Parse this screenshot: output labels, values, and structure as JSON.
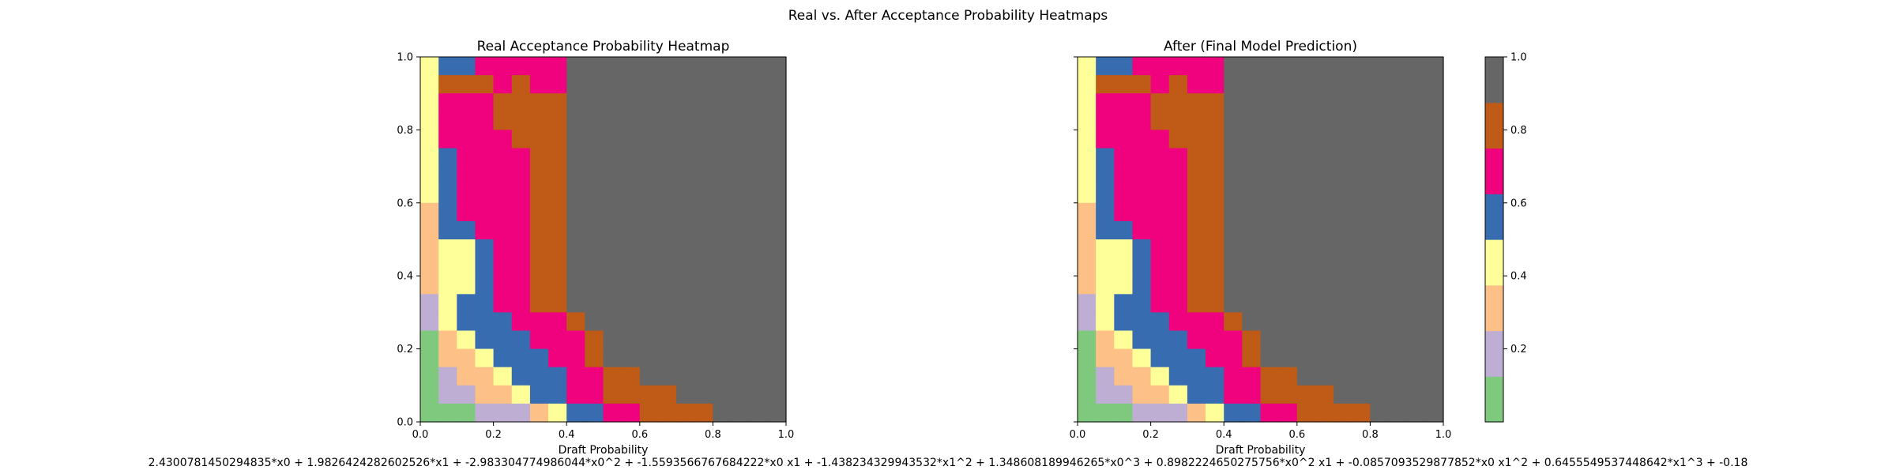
{
  "suptitle": "Real vs. After Acceptance Probability Heatmaps",
  "formula": "2.4300781450294835*x0 + 1.9826424282602526*x1 + -2.983304774986044*x0^2 + -1.5593566767684222*x0 x1 + -1.438234329943532*x1^2 + 1.348608189946265*x0^3 + 0.8982224650275756*x0^2 x1 + -0.0857093529877852*x0 x1^2 + 0.6455549537448642*x1^3 + -0.18",
  "colorbar": {
    "ticks": [
      "0.2",
      "0.4",
      "0.6",
      "0.8",
      "1.0"
    ],
    "tick_values": [
      0.2,
      0.4,
      0.6,
      0.8,
      1.0
    ],
    "range": [
      0.0,
      1.0
    ],
    "colors": [
      "#7fc97f",
      "#beaed4",
      "#fdc086",
      "#ffff99",
      "#386cb0",
      "#f0027f",
      "#bf5b17",
      "#666666"
    ]
  },
  "chart_data": [
    {
      "type": "heatmap",
      "title": "Real Acceptance Probability Heatmap",
      "xlabel": "Draft Probability",
      "ylabel": "",
      "xlim": [
        0,
        1
      ],
      "ylim": [
        0,
        1
      ],
      "xticks": [
        "0.0",
        "0.2",
        "0.4",
        "0.6",
        "0.8",
        "1.0"
      ],
      "yticks": [
        "0.0",
        "0.2",
        "0.4",
        "0.6",
        "0.8",
        "1.0"
      ],
      "grid_size": 20,
      "value_range": [
        0,
        1
      ],
      "rows_top_to_bottom": [
        "45566666888888888888",
        "47776766888888888888",
        "46667777888888888888",
        "46667777888888888888",
        "46666777888888888888",
        "45666677888888888888",
        "45666677888888888888",
        "45666677888888888888",
        "35666677888888888888",
        "35566677888888888888",
        "34456677888888888888",
        "34456677888888888888",
        "34456677888888888888",
        "24556677888888888888",
        "24555666788888888888",
        "13455566678888888888",
        "13345556678888888888",
        "12334555667788888888",
        "12233455667777888888",
        "11122234556677778888"
      ]
    },
    {
      "type": "heatmap",
      "title": "After (Final Model Prediction)",
      "xlabel": "Draft Probability",
      "ylabel": "",
      "xlim": [
        0,
        1
      ],
      "ylim": [
        0,
        1
      ],
      "xticks": [
        "0.0",
        "0.2",
        "0.4",
        "0.6",
        "0.8",
        "1.0"
      ],
      "yticks": [
        "0.0",
        "0.2",
        "0.4",
        "0.6",
        "0.8",
        "1.0"
      ],
      "grid_size": 20,
      "value_range": [
        0,
        1
      ],
      "rows_top_to_bottom": [
        "45566666888888888888",
        "47776766888888888888",
        "46667777888888888888",
        "46667777888888888888",
        "46666777888888888888",
        "45666677888888888888",
        "45666677888888888888",
        "45666677888888888888",
        "35666677888888888888",
        "35566677888888888888",
        "34456677888888888888",
        "34456677888888888888",
        "34456677888888888888",
        "24556677888888888888",
        "24555666788888888888",
        "13455566678888888888",
        "13345556678888888888",
        "12334555667788888888",
        "12233455667777888888",
        "11122234556677778888"
      ]
    }
  ]
}
